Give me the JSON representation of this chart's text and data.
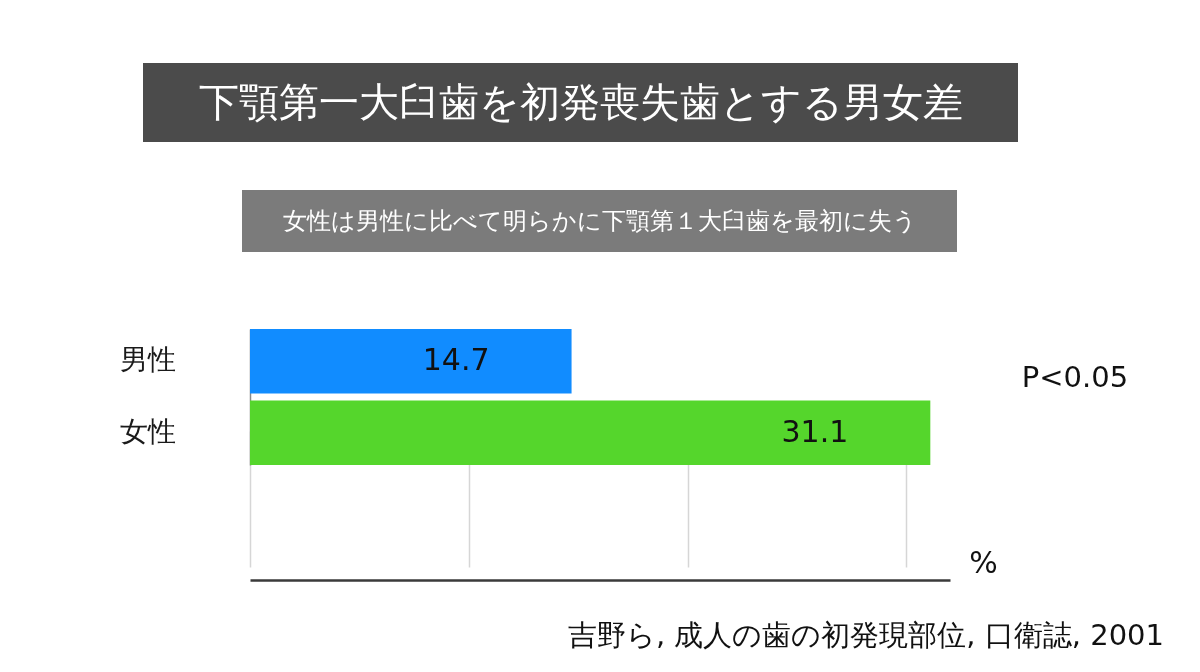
{
  "chart_data": {
    "type": "bar",
    "orientation": "horizontal",
    "title": "下顎第一大臼歯を初発喪失歯とする男女差",
    "subtitle": "女性は男性に比べて明らかに下顎第１大臼歯を最初に失う",
    "xlabel": "%",
    "categories": [
      "男性",
      "女性"
    ],
    "values": [
      14.7,
      31.1
    ],
    "colors": [
      "#118cff",
      "#55d62c"
    ],
    "tick_labels": "y",
    "grid": "x",
    "data_labels": true,
    "legend": false,
    "annotations": [
      "P<0.05",
      "吉野ら, 成人の歯の初発現部位, 口衛誌, 2001"
    ]
  }
}
